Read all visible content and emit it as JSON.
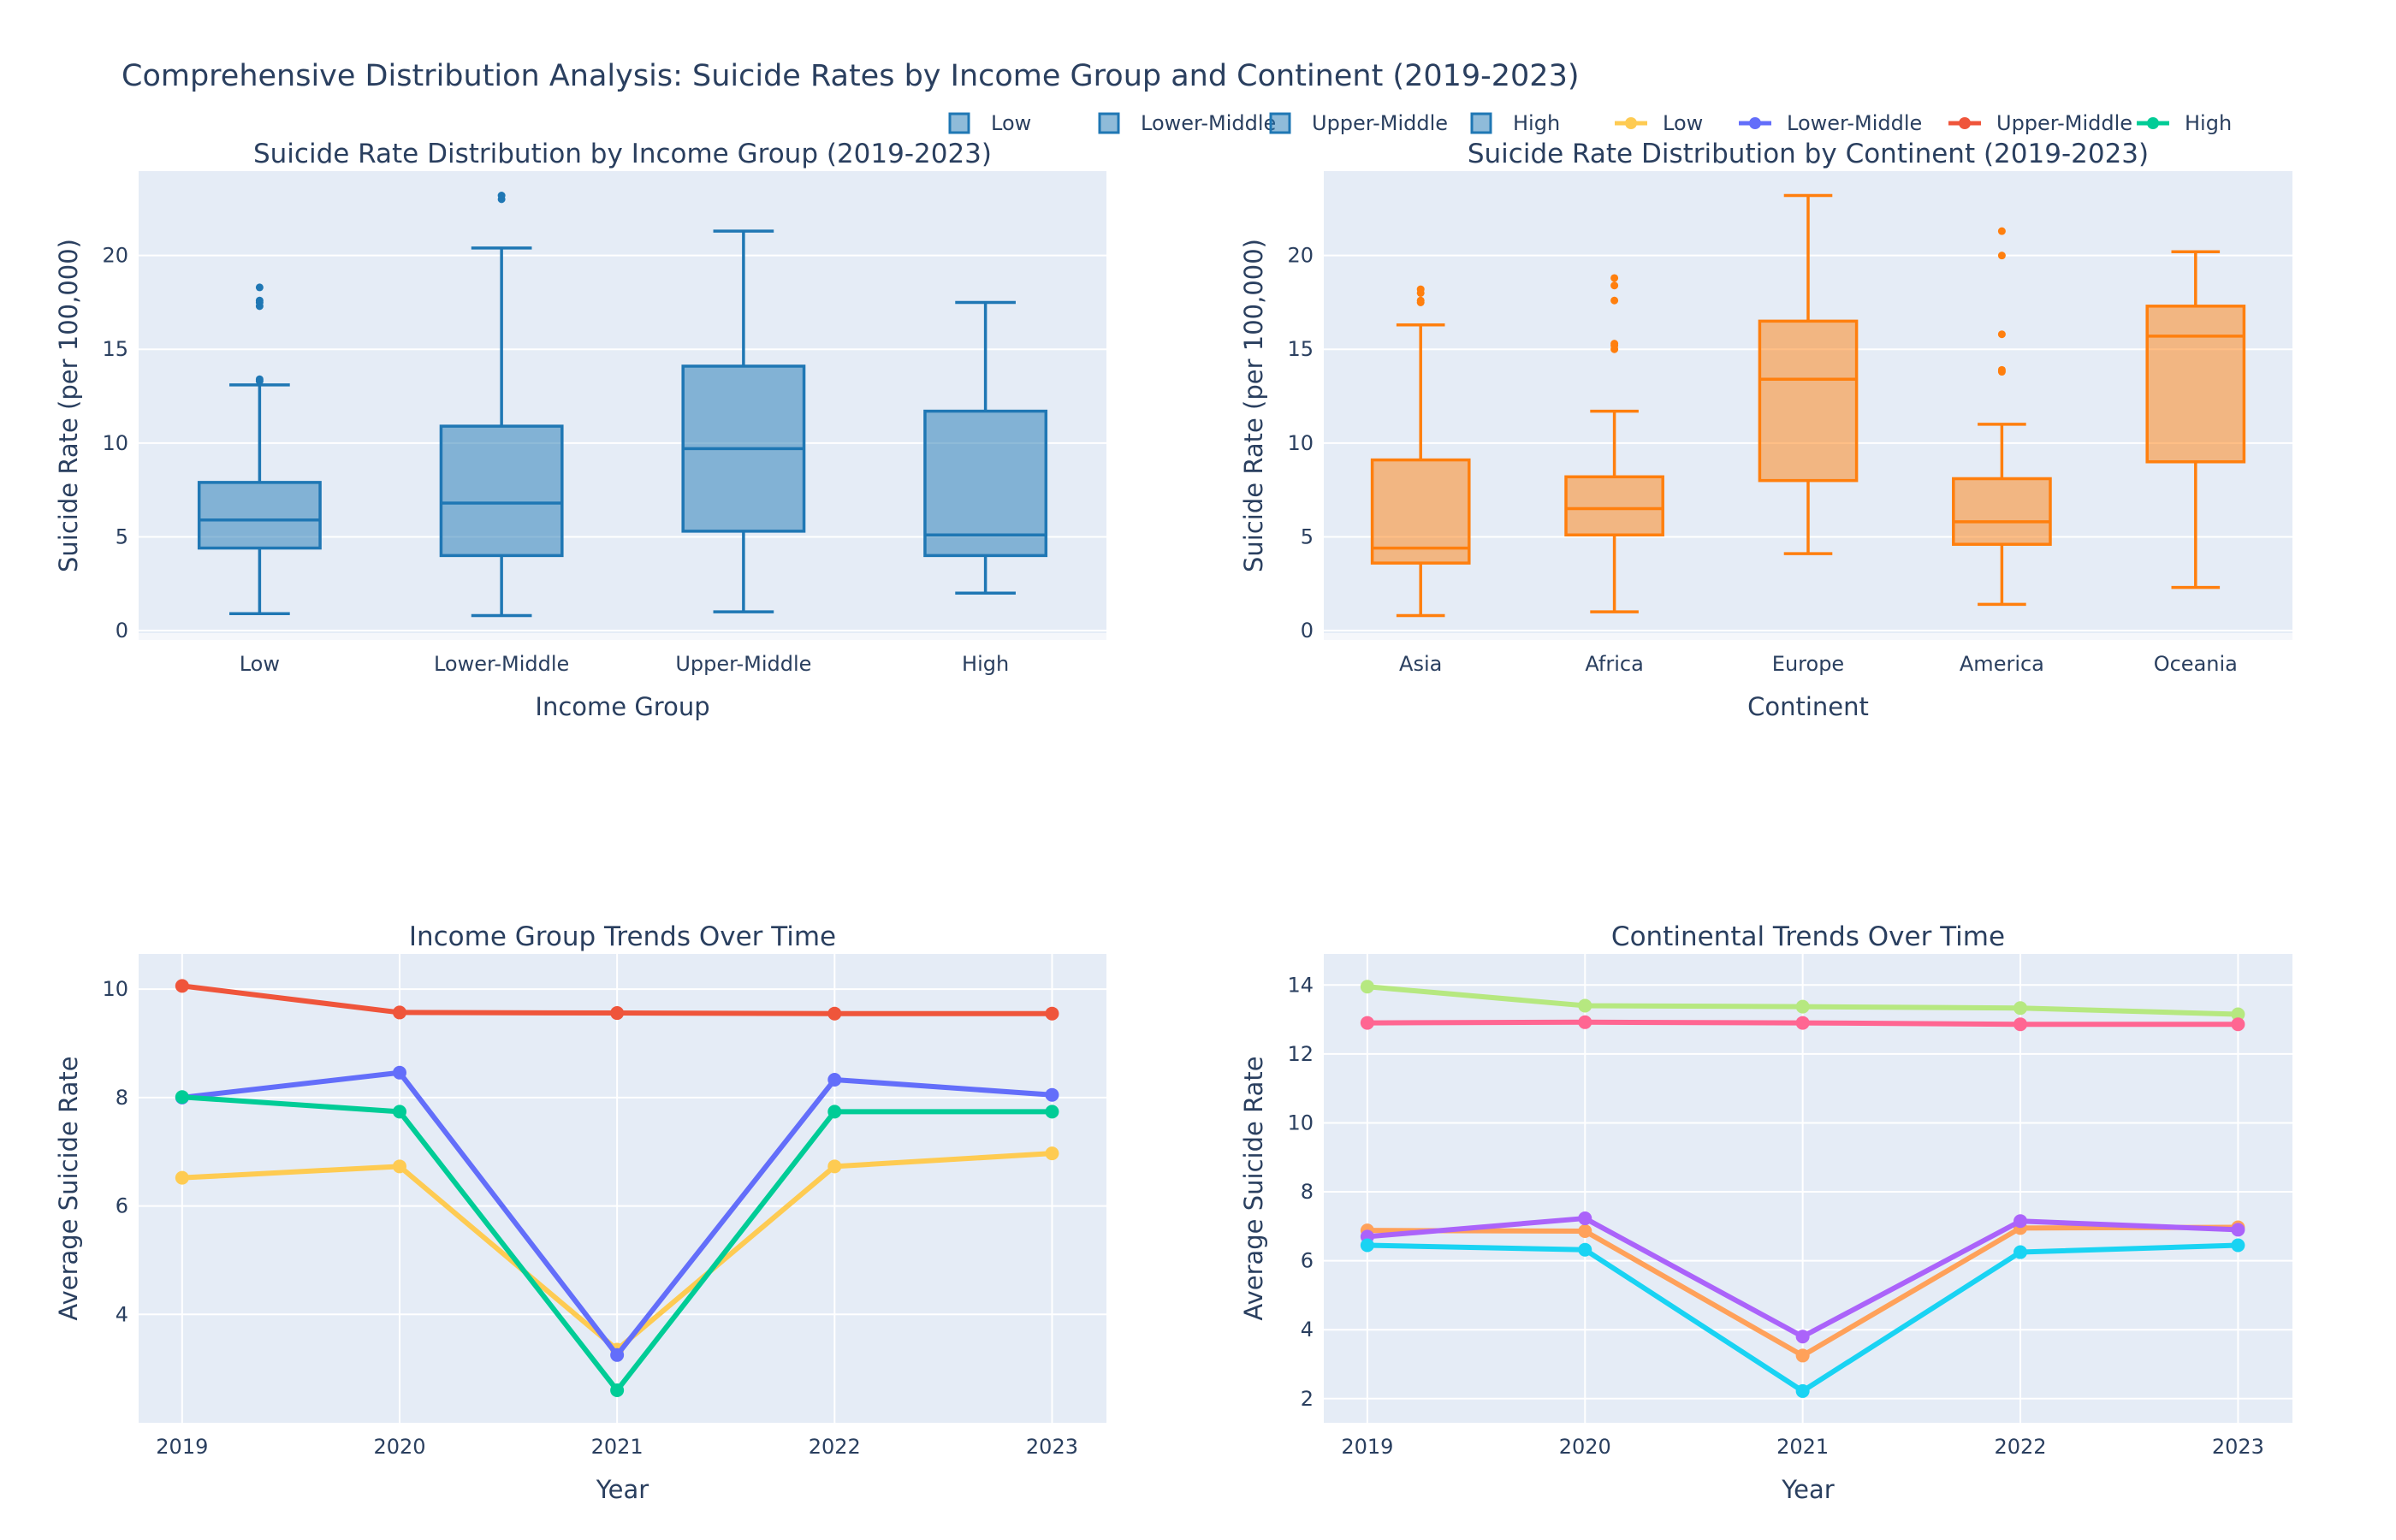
{
  "title": "Comprehensive Distribution Analysis: Suicide Rates by Income Group and Continent (2019-2023)",
  "legend": {
    "items": [
      {
        "label": "Low",
        "kind": "box",
        "color": "#1f77b4"
      },
      {
        "label": "Lower-Middle",
        "kind": "box",
        "color": "#1f77b4"
      },
      {
        "label": "Upper-Middle",
        "kind": "box",
        "color": "#1f77b4"
      },
      {
        "label": "High",
        "kind": "box",
        "color": "#1f77b4"
      },
      {
        "label": "Low",
        "kind": "line",
        "color": "#fecb52"
      },
      {
        "label": "Lower-Middle",
        "kind": "line",
        "color": "#636efa"
      },
      {
        "label": "Upper-Middle",
        "kind": "line",
        "color": "#ef553b"
      },
      {
        "label": "High",
        "kind": "line",
        "color": "#00cc96"
      }
    ]
  },
  "colors": {
    "plot_bg": "#e5ecf6",
    "grid": "#ffffff",
    "text": "#2a3f5f",
    "box_income": "#1f77b4",
    "box_income_fill": "rgba(31,119,180,0.5)",
    "box_continent": "#ff7f0e",
    "box_continent_fill": "rgba(255,127,14,0.5)"
  },
  "chart_data": [
    {
      "type": "box",
      "title": "Suicide Rate Distribution by Income Group (2019-2023)",
      "xlabel": "Income Group",
      "ylabel": "Suicide Rate (per 100,000)",
      "ylim": [
        -0.5,
        24.5
      ],
      "yticks": [
        0,
        5,
        10,
        15,
        20
      ],
      "grid": true,
      "categories": [
        "Low",
        "Lower-Middle",
        "Upper-Middle",
        "High"
      ],
      "boxes": [
        {
          "name": "Low",
          "lower": 0.9,
          "q1": 4.4,
          "median": 5.9,
          "q3": 7.9,
          "upper": 13.1,
          "outliers": [
            13.3,
            13.4,
            17.3,
            17.5,
            17.6,
            18.3
          ]
        },
        {
          "name": "Lower-Middle",
          "lower": 0.8,
          "q1": 4.0,
          "median": 6.8,
          "q3": 10.9,
          "upper": 20.4,
          "outliers": [
            23.0,
            23.2
          ]
        },
        {
          "name": "Upper-Middle",
          "lower": 1.0,
          "q1": 5.3,
          "median": 9.7,
          "q3": 14.1,
          "upper": 21.3,
          "outliers": []
        },
        {
          "name": "High",
          "lower": 2.0,
          "q1": 4.0,
          "median": 5.1,
          "q3": 11.7,
          "upper": 17.5,
          "outliers": []
        }
      ]
    },
    {
      "type": "box",
      "title": "Suicide Rate Distribution by Continent (2019-2023)",
      "xlabel": "Continent",
      "ylabel": "Suicide Rate (per 100,000)",
      "ylim": [
        -0.5,
        24.5
      ],
      "yticks": [
        0,
        5,
        10,
        15,
        20
      ],
      "grid": true,
      "categories": [
        "Asia",
        "Africa",
        "Europe",
        "America",
        "Oceania"
      ],
      "boxes": [
        {
          "name": "Asia",
          "lower": 0.8,
          "q1": 3.6,
          "median": 4.4,
          "q3": 9.1,
          "upper": 16.3,
          "outliers": [
            17.5,
            17.6,
            18.0,
            18.2
          ]
        },
        {
          "name": "Africa",
          "lower": 1.0,
          "q1": 5.1,
          "median": 6.5,
          "q3": 8.2,
          "upper": 11.7,
          "outliers": [
            15.0,
            15.2,
            15.3,
            17.6,
            18.4,
            18.8
          ]
        },
        {
          "name": "Europe",
          "lower": 4.1,
          "q1": 8.0,
          "median": 13.4,
          "q3": 16.5,
          "upper": 23.2,
          "outliers": []
        },
        {
          "name": "America",
          "lower": 1.4,
          "q1": 4.6,
          "median": 5.8,
          "q3": 8.1,
          "upper": 11.0,
          "outliers": [
            13.8,
            13.9,
            15.8,
            20.0,
            21.3
          ]
        },
        {
          "name": "Oceania",
          "lower": 2.3,
          "q1": 9.0,
          "median": 15.7,
          "q3": 17.3,
          "upper": 20.2,
          "outliers": []
        }
      ]
    },
    {
      "type": "line",
      "title": "Income Group Trends Over Time",
      "xlabel": "Year",
      "ylabel": "Average Suicide Rate",
      "x": [
        2019,
        2020,
        2021,
        2022,
        2023
      ],
      "xlim": [
        2018.8,
        2023.25
      ],
      "ylim": [
        2.0,
        10.65
      ],
      "yticks": [
        4,
        6,
        8,
        10
      ],
      "grid": true,
      "series": [
        {
          "name": "Low",
          "color": "#fecb52",
          "values": [
            6.52,
            6.73,
            3.35,
            6.73,
            6.97
          ]
        },
        {
          "name": "Lower-Middle",
          "color": "#636efa",
          "values": [
            8.0,
            8.46,
            3.25,
            8.33,
            8.05
          ]
        },
        {
          "name": "Upper-Middle",
          "color": "#ef553b",
          "values": [
            10.06,
            9.57,
            9.56,
            9.55,
            9.55
          ]
        },
        {
          "name": "High",
          "color": "#00cc96",
          "values": [
            8.01,
            7.74,
            2.6,
            7.74,
            7.74
          ]
        }
      ]
    },
    {
      "type": "line",
      "title": "Continental Trends Over Time",
      "xlabel": "Year",
      "ylabel": "Average Suicide Rate",
      "x": [
        2019,
        2020,
        2021,
        2022,
        2023
      ],
      "xlim": [
        2018.8,
        2023.25
      ],
      "ylim": [
        1.3,
        14.9
      ],
      "yticks": [
        2,
        4,
        6,
        8,
        10,
        12,
        14
      ],
      "grid": true,
      "series": [
        {
          "color": "#b6e880",
          "values": [
            13.95,
            13.4,
            13.37,
            13.33,
            13.15
          ]
        },
        {
          "color": "#ff6692",
          "values": [
            12.9,
            12.92,
            12.9,
            12.86,
            12.86
          ]
        },
        {
          "color": "#ffa15a",
          "values": [
            6.88,
            6.86,
            3.25,
            6.95,
            6.97
          ]
        },
        {
          "color": "#ab63fa",
          "values": [
            6.7,
            7.23,
            3.8,
            7.15,
            6.9
          ]
        },
        {
          "color": "#19d3f3",
          "values": [
            6.45,
            6.32,
            2.22,
            6.25,
            6.45
          ]
        }
      ]
    }
  ]
}
